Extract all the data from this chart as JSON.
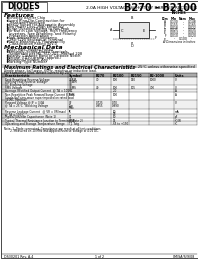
{
  "title": "B270 - B2100",
  "subtitle": "2.0A HIGH VOLTAGE SCHOTTKY BARRIER RECTIFIER",
  "logo_text": "DIODES",
  "logo_sub": "INCORPORATED",
  "bg_color": "#ffffff",
  "border_color": "#000000",
  "features_title": "Features",
  "features": [
    "Schottky Barrier Chip",
    "Guard Ring Die-Construction for\n  Transient Protection",
    "Ideally Suited for Automatic Assembly",
    "Low Power Loss, High Efficiency",
    "Surge Overload Rating to Not Peak",
    "For Use in Low Voltage, High Frequency\n  Inverters, Free Wheeling, and Polarity\n  Protection Application",
    "High Temperature Soldering\n  250°C/10 Seconds at Terminal",
    "Plastic Material: UL Flammability\n  Classification Rating 94V-0"
  ],
  "mech_title": "Mechanical Data",
  "mech": [
    "Case: MBS, Molded Plastic",
    "Terminals: Solder Plated Terminals,\n  Solderable per MIL-STD-202, Method 208",
    "Polarity: Cathode Band or Cathode Notch",
    "Weight: 0.020 grams (approx.)",
    "Mounting Position: Any",
    "Marking: Type Number"
  ],
  "ratings_title": "Maximum Ratings and Electrical Characteristics",
  "ratings_note1": "@ T = 25°C unless otherwise specified",
  "ratings_note2": "Single phase, half wave, 60Hz, resistive or inductive load.",
  "ratings_note3": "For capacitive load, derate current by 20%.",
  "col_headers": [
    "Characteristic",
    "Symbol",
    "B270",
    "B2100",
    "B2150",
    "B2-1000",
    "Units"
  ],
  "footer_note1": "Note: 1. Diode connected, Capacitance are result at all test conditions.",
  "footer_note2": "       2. Measured on 10 MHz and Applied Reverse Voltage of 4.0V DC.",
  "footer_left": "DS30201 Rev. A.4",
  "footer_mid": "1 of 2",
  "footer_right": "0M/SA/S/9/08",
  "dim_labels": [
    "A",
    "B",
    "C",
    "D",
    "E",
    "F",
    "e"
  ],
  "dim_mins": [
    "0.130",
    "0.155",
    "0.018",
    "0.025",
    "0.054",
    "0.010",
    "-"
  ],
  "dim_noms": [
    "-",
    "-",
    "-",
    "-",
    "-",
    "-",
    "0.100"
  ],
  "dim_maxs": [
    "0.148",
    "0.165",
    "0.022",
    "0.035",
    "0.060",
    "0.020",
    "-"
  ]
}
